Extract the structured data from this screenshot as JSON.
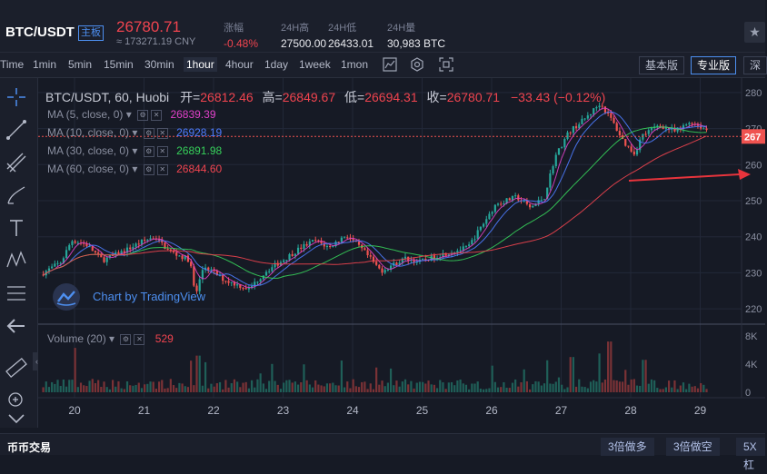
{
  "header": {
    "pair": "BTC/USDT",
    "board_tag": "主板",
    "last_price": "26780.71",
    "last_price_cny": "≈ 173271.19 CNY",
    "stats": [
      {
        "label": "涨幅",
        "value": "-0.48%"
      },
      {
        "label": "24H高",
        "value": "27500.00"
      },
      {
        "label": "24H低",
        "value": "26433.01"
      },
      {
        "label": "24H量",
        "value": "30,983 BTC"
      }
    ]
  },
  "toolbar": {
    "intervals": [
      "Time",
      "1min",
      "5min",
      "15min",
      "30min",
      "1hour",
      "4hour",
      "1day",
      "1week",
      "1mon"
    ],
    "active_interval": "1hour",
    "icons": [
      "chart-type-icon",
      "settings-icon",
      "fullscreen-icon"
    ],
    "versions": [
      "基本版",
      "专业版",
      "深"
    ],
    "active_version": "专业版"
  },
  "legend": {
    "symbol": "BTC/USDT, 60, Huobi",
    "open_label": "开=",
    "open": "26812.46",
    "high_label": "高=",
    "high": "26849.67",
    "low_label": "低=",
    "low": "26694.31",
    "close_label": "收=",
    "close": "26780.71",
    "change": "−33.43 (−0.12%)"
  },
  "ma": [
    {
      "label": "MA (5, close, 0)",
      "value": "26839.39",
      "color": "#e040c8"
    },
    {
      "label": "MA (10, close, 0)",
      "value": "26928.19",
      "color": "#4d7cff"
    },
    {
      "label": "MA (30, close, 0)",
      "value": "26891.98",
      "color": "#36d05a"
    },
    {
      "label": "MA (60, close, 0)",
      "value": "26844.60",
      "color": "#f0444f"
    }
  ],
  "watermark": "Chart by TradingView",
  "volume": {
    "label": "Volume (20)",
    "value": "529"
  },
  "price_tag": "267",
  "bottom": {
    "title": "币币交易",
    "buttons": [
      "3倍做多",
      "3倍做空",
      "5X杠"
    ]
  },
  "colors": {
    "up": "#26a69a",
    "down": "#ef5350",
    "accent": "#4d8ff0"
  },
  "chart_data": {
    "type": "candlestick",
    "price_axis_ticks": [
      "280",
      "270",
      "260",
      "250",
      "240",
      "230",
      "220"
    ],
    "volume_axis_ticks": [
      "8K",
      "4K",
      "0"
    ],
    "date_ticks": [
      "20",
      "21",
      "22",
      "23",
      "24",
      "25",
      "26",
      "27",
      "28",
      "29"
    ],
    "ylim": [
      21600,
      28400
    ],
    "volume_ylim": [
      0,
      8500
    ],
    "hours_per_day": 24,
    "candle_count": 230,
    "first_day": 19.55,
    "anchors": [
      [
        19.55,
        22950
      ],
      [
        19.85,
        23300
      ],
      [
        20.0,
        23900
      ],
      [
        20.2,
        23800
      ],
      [
        20.45,
        23350
      ],
      [
        20.75,
        23600
      ],
      [
        21.05,
        23900
      ],
      [
        21.2,
        24000
      ],
      [
        21.4,
        23600
      ],
      [
        21.7,
        23350
      ],
      [
        21.78,
        22350
      ],
      [
        21.9,
        23200
      ],
      [
        22.2,
        22800
      ],
      [
        22.55,
        22550
      ],
      [
        22.8,
        23050
      ],
      [
        23.0,
        23300
      ],
      [
        23.3,
        23700
      ],
      [
        23.5,
        23900
      ],
      [
        23.7,
        23700
      ],
      [
        23.95,
        24050
      ],
      [
        24.2,
        23600
      ],
      [
        24.45,
        23050
      ],
      [
        24.6,
        23200
      ],
      [
        24.8,
        23400
      ],
      [
        25.0,
        23300
      ],
      [
        25.3,
        23500
      ],
      [
        25.7,
        23700
      ],
      [
        25.9,
        24300
      ],
      [
        26.1,
        24900
      ],
      [
        26.4,
        25100
      ],
      [
        26.6,
        24800
      ],
      [
        26.8,
        25100
      ],
      [
        26.95,
        26200
      ],
      [
        27.15,
        26900
      ],
      [
        27.4,
        27300
      ],
      [
        27.6,
        27700
      ],
      [
        27.75,
        27300
      ],
      [
        27.95,
        26600
      ],
      [
        28.1,
        26300
      ],
      [
        28.2,
        26800
      ],
      [
        28.45,
        27100
      ],
      [
        28.7,
        26900
      ],
      [
        28.9,
        27200
      ],
      [
        29.15,
        26950
      ],
      [
        29.35,
        26780
      ]
    ]
  }
}
